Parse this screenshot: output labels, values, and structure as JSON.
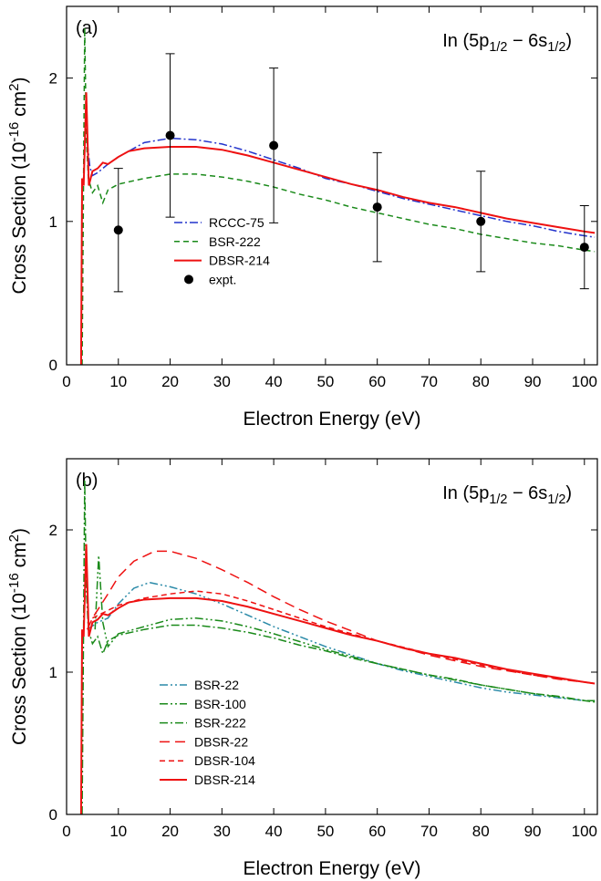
{
  "chart_data": [
    {
      "type": "line",
      "panel_label": "(a)",
      "annotation": [
        {
          "text": "In (5p"
        },
        {
          "text": "1/2",
          "sub": true
        },
        {
          "text": " − 6s"
        },
        {
          "text": "1/2",
          "sub": true
        },
        {
          "text": ")"
        }
      ],
      "xlabel": "Electron Energy (eV)",
      "ylabel": [
        {
          "text": "Cross Section (10"
        },
        {
          "text": "-16",
          "sup": true
        },
        {
          "text": " cm"
        },
        {
          "text": "2",
          "sup": true
        },
        {
          "text": ")"
        }
      ],
      "xlim": [
        0,
        102.5
      ],
      "xticks": [
        0,
        10,
        20,
        30,
        40,
        50,
        60,
        70,
        80,
        90,
        100
      ],
      "ylim": [
        0,
        2.5
      ],
      "yticks": [
        0,
        1,
        2
      ],
      "legend": "lower center",
      "series": [
        {
          "name": "RCCC-75",
          "color": "#2233cc",
          "linestyle": "dash-dot",
          "kind": "line",
          "x": [
            4,
            4.5,
            5,
            6,
            8,
            10,
            15,
            20,
            25,
            30,
            35,
            40,
            45,
            50,
            55,
            60,
            65,
            70,
            75,
            80,
            85,
            90,
            95,
            100,
            102
          ],
          "values": [
            1.55,
            1.38,
            1.32,
            1.34,
            1.4,
            1.45,
            1.55,
            1.58,
            1.57,
            1.54,
            1.49,
            1.43,
            1.37,
            1.3,
            1.26,
            1.21,
            1.16,
            1.12,
            1.08,
            1.04,
            1.0,
            0.97,
            0.93,
            0.9,
            0.89
          ]
        },
        {
          "name": "BSR-222",
          "color": "#1a8a1a",
          "linestyle": "dash",
          "kind": "line",
          "x": [
            3,
            3.3,
            3.5,
            3.8,
            4.2,
            5,
            6,
            7,
            8,
            10,
            15,
            20,
            25,
            30,
            35,
            40,
            45,
            50,
            55,
            60,
            65,
            70,
            75,
            80,
            85,
            90,
            95,
            100,
            102
          ],
          "values": [
            0,
            1.4,
            2.35,
            1.6,
            1.3,
            1.2,
            1.25,
            1.13,
            1.22,
            1.26,
            1.3,
            1.33,
            1.33,
            1.31,
            1.28,
            1.24,
            1.19,
            1.15,
            1.1,
            1.06,
            1.02,
            0.98,
            0.95,
            0.91,
            0.88,
            0.85,
            0.83,
            0.8,
            0.79
          ]
        },
        {
          "name": "DBSR-214",
          "color": "#ee1111",
          "linestyle": "solid",
          "kind": "line",
          "x": [
            2.8,
            3,
            3.3,
            3.8,
            4.3,
            5,
            6,
            7,
            8,
            10,
            12,
            15,
            20,
            25,
            30,
            35,
            40,
            45,
            50,
            55,
            60,
            65,
            70,
            75,
            80,
            85,
            90,
            95,
            100,
            102
          ],
          "values": [
            0,
            1.3,
            1.25,
            1.9,
            1.25,
            1.35,
            1.37,
            1.41,
            1.4,
            1.45,
            1.49,
            1.51,
            1.52,
            1.52,
            1.5,
            1.46,
            1.41,
            1.36,
            1.31,
            1.26,
            1.22,
            1.17,
            1.13,
            1.1,
            1.06,
            1.02,
            0.99,
            0.96,
            0.93,
            0.92
          ]
        },
        {
          "name": "expt.",
          "color": "#000000",
          "kind": "scatter",
          "x": [
            10,
            20,
            40,
            60,
            80,
            100
          ],
          "values": [
            0.94,
            1.6,
            1.53,
            1.1,
            1.0,
            0.82
          ],
          "errors": [
            0.43,
            0.57,
            0.54,
            0.38,
            0.35,
            0.29
          ]
        }
      ]
    },
    {
      "type": "line",
      "panel_label": "(b)",
      "annotation": [
        {
          "text": "In (5p"
        },
        {
          "text": "1/2",
          "sub": true
        },
        {
          "text": " − 6s"
        },
        {
          "text": "1/2",
          "sub": true
        },
        {
          "text": ")"
        }
      ],
      "xlabel": "Electron Energy (eV)",
      "ylabel": [
        {
          "text": "Cross Section (10"
        },
        {
          "text": "-16",
          "sup": true
        },
        {
          "text": " cm"
        },
        {
          "text": "2",
          "sup": true
        },
        {
          "text": ")"
        }
      ],
      "xlim": [
        0,
        102.5
      ],
      "xticks": [
        0,
        10,
        20,
        30,
        40,
        50,
        60,
        70,
        80,
        90,
        100
      ],
      "ylim": [
        0,
        2.5
      ],
      "yticks": [
        0,
        1,
        2
      ],
      "legend": "lower left",
      "series": [
        {
          "name": "BSR-22",
          "color": "#2a8aa8",
          "linestyle": "dash-dot-dot",
          "kind": "line",
          "x": [
            4,
            6,
            8,
            10,
            13,
            16,
            20,
            25,
            30,
            35,
            40,
            45,
            50,
            55,
            60,
            65,
            70,
            75,
            80,
            85,
            90,
            95,
            100,
            102
          ],
          "values": [
            1.3,
            1.35,
            1.38,
            1.48,
            1.59,
            1.63,
            1.6,
            1.55,
            1.48,
            1.4,
            1.32,
            1.25,
            1.18,
            1.12,
            1.06,
            1.01,
            0.97,
            0.93,
            0.89,
            0.86,
            0.84,
            0.82,
            0.8,
            0.8
          ]
        },
        {
          "name": "BSR-100",
          "color": "#1a8a1a",
          "linestyle": "dash-dot-dot",
          "kind": "line",
          "x": [
            5.5,
            6.2,
            7,
            8,
            10,
            15,
            20,
            25,
            30,
            35,
            40,
            50,
            60,
            70,
            80,
            90,
            100,
            102
          ],
          "values": [
            1.3,
            1.82,
            1.35,
            1.18,
            1.27,
            1.32,
            1.37,
            1.38,
            1.36,
            1.32,
            1.27,
            1.16,
            1.06,
            0.98,
            0.91,
            0.85,
            0.8,
            0.8
          ]
        },
        {
          "name": "BSR-222",
          "color": "#1a8a1a",
          "linestyle": "dash-dot",
          "kind": "line",
          "x": [
            3,
            3.3,
            3.5,
            3.8,
            4.2,
            5,
            6,
            7,
            8,
            10,
            15,
            20,
            25,
            30,
            35,
            40,
            45,
            50,
            55,
            60,
            65,
            70,
            75,
            80,
            85,
            90,
            95,
            100,
            102
          ],
          "values": [
            0,
            1.4,
            2.35,
            1.6,
            1.3,
            1.2,
            1.25,
            1.13,
            1.22,
            1.26,
            1.3,
            1.33,
            1.33,
            1.31,
            1.28,
            1.24,
            1.19,
            1.15,
            1.1,
            1.06,
            1.02,
            0.98,
            0.95,
            0.91,
            0.88,
            0.85,
            0.83,
            0.8,
            0.79
          ]
        },
        {
          "name": "DBSR-22",
          "color": "#ee1111",
          "linestyle": "long-dash",
          "kind": "line",
          "x": [
            4,
            5,
            8,
            10,
            13,
            17,
            20,
            25,
            30,
            35,
            40,
            45,
            50,
            55,
            60,
            65,
            70,
            75,
            80,
            85,
            90,
            95,
            100,
            102
          ],
          "values": [
            1.3,
            1.38,
            1.55,
            1.67,
            1.78,
            1.85,
            1.85,
            1.8,
            1.72,
            1.63,
            1.53,
            1.44,
            1.36,
            1.29,
            1.22,
            1.17,
            1.12,
            1.08,
            1.04,
            1.01,
            0.98,
            0.95,
            0.93,
            0.92
          ]
        },
        {
          "name": "DBSR-104",
          "color": "#ee1111",
          "linestyle": "dash",
          "kind": "line",
          "x": [
            5,
            10,
            15,
            20,
            25,
            30,
            35,
            40,
            45,
            50,
            55,
            60,
            70,
            80,
            90,
            100,
            102
          ],
          "values": [
            1.38,
            1.47,
            1.52,
            1.55,
            1.57,
            1.55,
            1.5,
            1.44,
            1.38,
            1.32,
            1.27,
            1.22,
            1.13,
            1.05,
            0.98,
            0.93,
            0.92
          ]
        },
        {
          "name": "DBSR-214",
          "color": "#ee1111",
          "linestyle": "solid",
          "kind": "line",
          "x": [
            2.8,
            3,
            3.3,
            3.8,
            4.3,
            5,
            6,
            7,
            8,
            10,
            12,
            15,
            20,
            25,
            30,
            35,
            40,
            45,
            50,
            55,
            60,
            65,
            70,
            75,
            80,
            85,
            90,
            95,
            100,
            102
          ],
          "values": [
            0,
            1.3,
            1.25,
            1.9,
            1.25,
            1.35,
            1.37,
            1.41,
            1.4,
            1.45,
            1.49,
            1.51,
            1.52,
            1.52,
            1.5,
            1.46,
            1.41,
            1.36,
            1.31,
            1.26,
            1.22,
            1.17,
            1.13,
            1.1,
            1.06,
            1.02,
            0.99,
            0.96,
            0.93,
            0.92
          ]
        }
      ]
    }
  ]
}
